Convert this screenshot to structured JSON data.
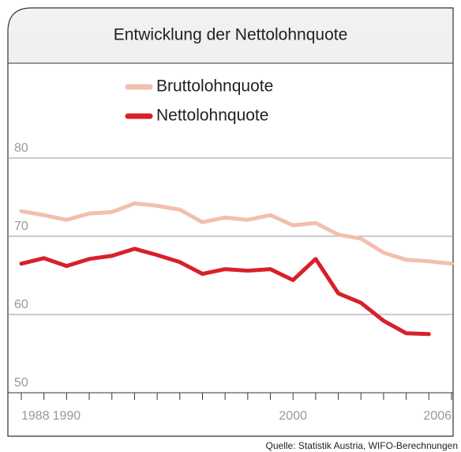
{
  "chart_data": {
    "type": "line",
    "title": "Entwicklung der Nettolohnquote",
    "categories": [
      "1988",
      null,
      "1990",
      null,
      null,
      null,
      null,
      null,
      null,
      null,
      null,
      null,
      "2000",
      null,
      null,
      null,
      null,
      null,
      null,
      "2006"
    ],
    "series": [
      {
        "name": "Bruttolohnquote",
        "color": "#f2bfae",
        "values": [
          73.2,
          72.7,
          72.1,
          72.9,
          73.1,
          74.2,
          73.9,
          73.4,
          71.8,
          72.4,
          72.1,
          72.7,
          71.4,
          71.7,
          70.2,
          69.7,
          67.9,
          67.0,
          66.8,
          66.5
        ]
      },
      {
        "name": "Nettolohnquote",
        "color": "#d7202a",
        "values": [
          66.5,
          67.2,
          66.2,
          67.1,
          67.5,
          68.4,
          67.6,
          66.7,
          65.2,
          65.8,
          65.6,
          65.8,
          64.4,
          67.1,
          62.7,
          61.5,
          59.2,
          57.6,
          57.5,
          null
        ]
      }
    ],
    "ylim": [
      50,
      80
    ],
    "yticks": [
      50,
      60,
      70,
      80
    ],
    "grid": true,
    "source": "Quelle: Statistik Austria, WIFO-Berechnungen"
  }
}
